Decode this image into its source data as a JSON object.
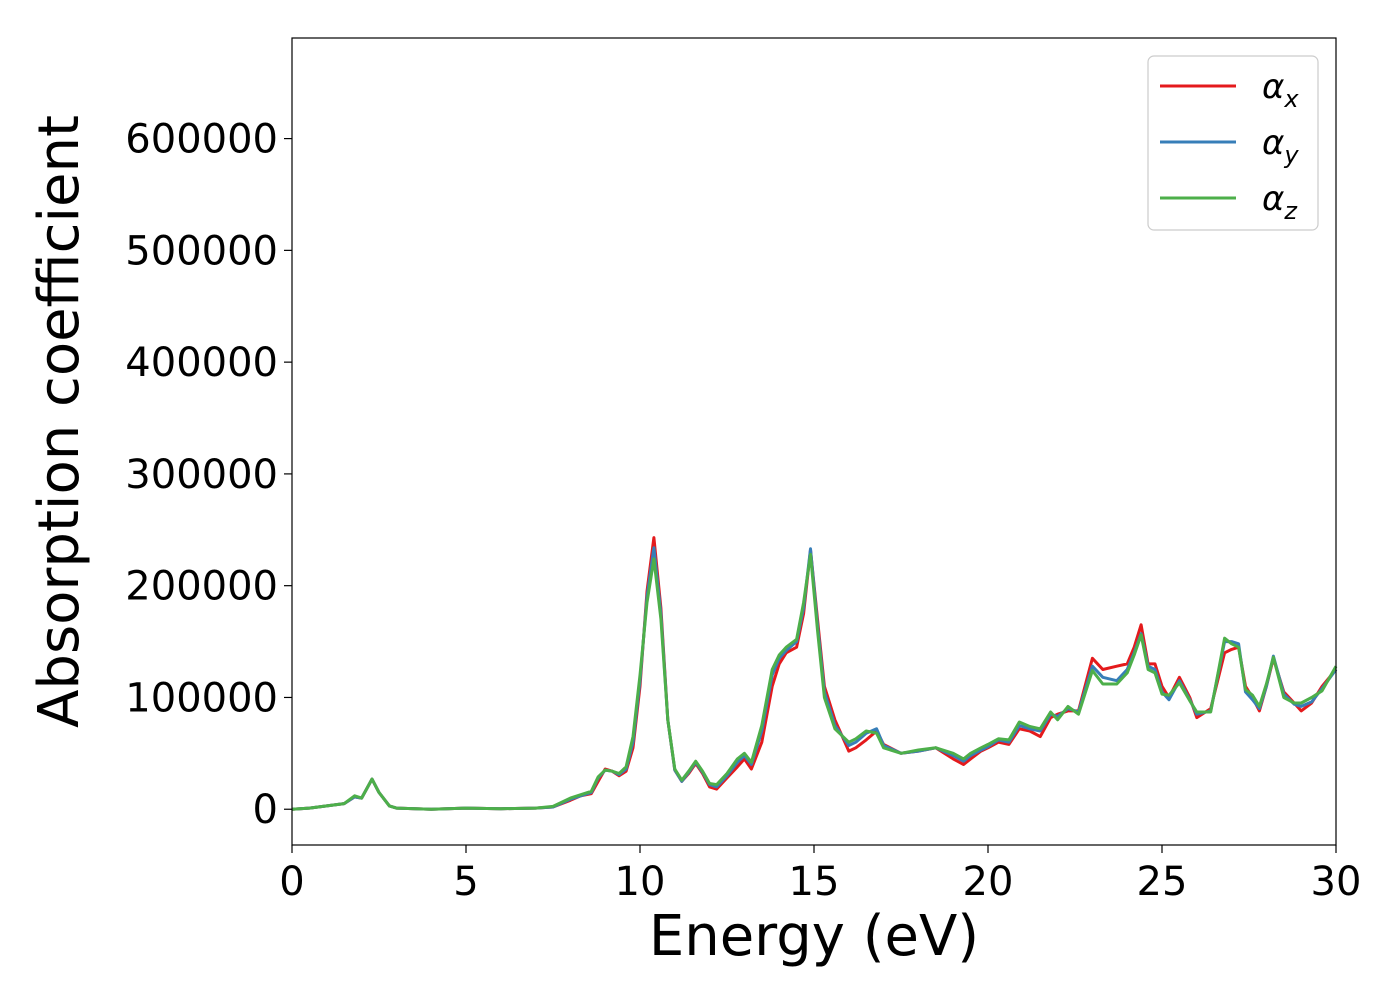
{
  "chart_data": {
    "type": "line",
    "xlabel": "Energy (eV)",
    "ylabel": "Absorption coefficient",
    "xlim": [
      0,
      30
    ],
    "ylim": [
      -32000,
      690000
    ],
    "xticks": [
      0,
      5,
      10,
      15,
      20,
      25,
      30
    ],
    "xtick_labels": [
      "0",
      "5",
      "10",
      "15",
      "20",
      "25",
      "30"
    ],
    "yticks": [
      0,
      100000,
      200000,
      300000,
      400000,
      500000,
      600000
    ],
    "ytick_labels": [
      "0",
      "100000",
      "200000",
      "300000",
      "400000",
      "500000",
      "600000"
    ],
    "grid": false,
    "legend_position": "top-right",
    "x": [
      0,
      0.5,
      1.0,
      1.5,
      1.8,
      2.0,
      2.3,
      2.5,
      2.8,
      3.0,
      4.0,
      5.0,
      6.0,
      7.0,
      7.5,
      8.0,
      8.3,
      8.6,
      8.8,
      9.0,
      9.2,
      9.4,
      9.6,
      9.8,
      10.0,
      10.2,
      10.4,
      10.6,
      10.8,
      11.0,
      11.2,
      11.4,
      11.6,
      11.8,
      12.0,
      12.2,
      12.5,
      12.8,
      13.0,
      13.2,
      13.5,
      13.8,
      14.0,
      14.2,
      14.5,
      14.7,
      14.9,
      15.1,
      15.3,
      15.6,
      16.0,
      16.2,
      16.5,
      16.8,
      17.0,
      17.5,
      18.0,
      18.5,
      19.0,
      19.3,
      19.5,
      19.8,
      20.0,
      20.3,
      20.6,
      20.9,
      21.2,
      21.5,
      21.8,
      22.0,
      22.3,
      22.6,
      23.0,
      23.3,
      23.7,
      24.0,
      24.2,
      24.4,
      24.6,
      24.8,
      25.0,
      25.2,
      25.5,
      25.8,
      26.0,
      26.4,
      26.8,
      27.0,
      27.2,
      27.4,
      27.6,
      27.8,
      28.0,
      28.2,
      28.5,
      28.8,
      29.0,
      29.3,
      29.6,
      30.0
    ],
    "series": [
      {
        "name": "αx",
        "color": "#e41a1c",
        "values": [
          0,
          1000,
          3000,
          5000,
          11000,
          10000,
          27000,
          15000,
          3000,
          1000,
          0,
          1000,
          500,
          1000,
          2000,
          8000,
          12000,
          14000,
          25000,
          36000,
          34000,
          30000,
          34000,
          55000,
          110000,
          195000,
          243000,
          180000,
          80000,
          35000,
          25000,
          32000,
          41000,
          32000,
          20000,
          18000,
          28000,
          38000,
          45000,
          36000,
          60000,
          110000,
          130000,
          140000,
          145000,
          175000,
          232000,
          170000,
          110000,
          80000,
          52000,
          55000,
          62000,
          70000,
          58000,
          50000,
          52000,
          55000,
          45000,
          40000,
          45000,
          52000,
          55000,
          60000,
          58000,
          72000,
          70000,
          65000,
          82000,
          85000,
          88000,
          88000,
          135000,
          125000,
          128000,
          130000,
          145000,
          165000,
          130000,
          130000,
          110000,
          100000,
          118000,
          100000,
          82000,
          90000,
          140000,
          143000,
          145000,
          110000,
          100000,
          88000,
          110000,
          135000,
          105000,
          95000,
          88000,
          95000,
          110000,
          125000
        ]
      },
      {
        "name": "αy",
        "color": "#377eb8",
        "values": [
          0,
          1000,
          3000,
          5000,
          11000,
          10000,
          27000,
          15000,
          3000,
          1000,
          0,
          1000,
          500,
          1000,
          2000,
          9000,
          12000,
          15000,
          28000,
          35000,
          34000,
          31000,
          36000,
          60000,
          115000,
          190000,
          234000,
          175000,
          80000,
          35000,
          25000,
          33000,
          42000,
          33000,
          22000,
          20000,
          30000,
          42000,
          48000,
          40000,
          70000,
          120000,
          135000,
          142000,
          150000,
          180000,
          233000,
          165000,
          105000,
          75000,
          57000,
          60000,
          68000,
          72000,
          57000,
          50000,
          52000,
          55000,
          48000,
          43000,
          48000,
          53000,
          56000,
          62000,
          60000,
          75000,
          72000,
          70000,
          85000,
          83000,
          90000,
          87000,
          128000,
          118000,
          115000,
          125000,
          140000,
          157000,
          128000,
          125000,
          105000,
          98000,
          115000,
          98000,
          85000,
          88000,
          150000,
          150000,
          148000,
          105000,
          98000,
          90000,
          110000,
          137000,
          103000,
          94000,
          92000,
          96000,
          108000,
          125000
        ]
      },
      {
        "name": "αz",
        "color": "#4daf4a",
        "values": [
          0,
          1000,
          3000,
          5000,
          12000,
          10000,
          27000,
          15000,
          3000,
          1000,
          0,
          1000,
          500,
          1000,
          2500,
          10000,
          13000,
          16000,
          29000,
          35000,
          34000,
          32000,
          38000,
          65000,
          120000,
          185000,
          224000,
          170000,
          80000,
          36000,
          26000,
          34000,
          43000,
          34000,
          23000,
          22000,
          32000,
          45000,
          50000,
          42000,
          75000,
          125000,
          138000,
          145000,
          152000,
          185000,
          228000,
          160000,
          100000,
          72000,
          60000,
          63000,
          70000,
          68000,
          55000,
          50000,
          53000,
          55000,
          50000,
          45000,
          50000,
          55000,
          58000,
          63000,
          62000,
          78000,
          74000,
          72000,
          87000,
          80000,
          92000,
          85000,
          124000,
          112000,
          112000,
          122000,
          138000,
          156000,
          125000,
          122000,
          103000,
          102000,
          113000,
          97000,
          87000,
          87000,
          153000,
          148000,
          145000,
          107000,
          102000,
          92000,
          112000,
          136000,
          100000,
          95000,
          95000,
          100000,
          106000,
          128000
        ]
      }
    ]
  },
  "legend": {
    "items": [
      {
        "base": "α",
        "sub": "x",
        "color": "#e41a1c"
      },
      {
        "base": "α",
        "sub": "y",
        "color": "#377eb8"
      },
      {
        "base": "α",
        "sub": "z",
        "color": "#4daf4a"
      }
    ]
  }
}
